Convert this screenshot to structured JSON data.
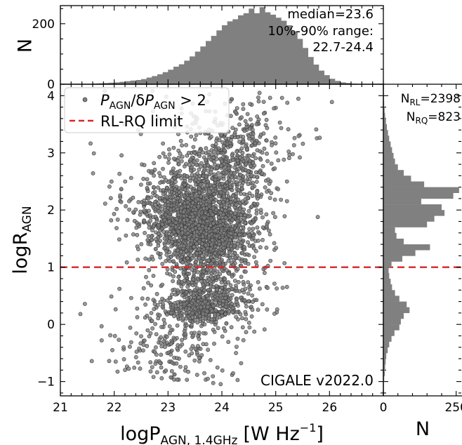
{
  "chart_data": [
    {
      "id": "scatter",
      "type": "scatter",
      "xlabel": "logP",
      "xlabel_sub": "AGN, 1.4GHz",
      "xlabel_unit": "[W Hz",
      "xlabel_exp": "−1",
      "xlabel_close": "]",
      "ylabel": "logR",
      "ylabel_sub": "AGN",
      "xlim": [
        21.0,
        27.0
      ],
      "ylim": [
        -1.25,
        4.2
      ],
      "xticks": [
        "21",
        "22",
        "23",
        "24",
        "25",
        "26"
      ],
      "xtick_values": [
        21,
        22,
        23,
        24,
        25,
        26
      ],
      "yticks": [
        "−1",
        "0",
        "1",
        "2",
        "3",
        "4"
      ],
      "ytick_values": [
        -1,
        0,
        1,
        2,
        3,
        4
      ],
      "legend_placement": "upper-left",
      "legend": {
        "points": {
          "p": "P",
          "p_sub": "AGN",
          "slash": "/δ",
          "p2": "P",
          "p2_sub": "AGN",
          "cond": " > 2"
        },
        "line": "RL-RQ limit"
      },
      "reference_line": {
        "y": 1.0,
        "color": "#d62728",
        "style": "dashed"
      },
      "point_color": "#808080",
      "point_edge": "#3a3a3a",
      "annotation": "CIGALE v2022.0",
      "series": [
        {
          "clusters": [
            {
              "x_mean": 23.45,
              "x_sd": 0.48,
              "y_mean": 1.85,
              "y_sd": 0.42,
              "n": 1150
            },
            {
              "x_mean": 23.9,
              "x_sd": 0.42,
              "y_mean": 1.55,
              "y_sd": 0.35,
              "n": 500
            },
            {
              "x_mean": 24.1,
              "x_sd": 0.45,
              "y_mean": 2.7,
              "y_sd": 0.5,
              "n": 420
            },
            {
              "x_mean": 23.6,
              "x_sd": 0.7,
              "y_mean": 2.2,
              "y_sd": 0.9,
              "n": 330
            },
            {
              "x_mean": 23.7,
              "x_sd": 0.4,
              "y_mean": 0.55,
              "y_sd": 0.22,
              "n": 330
            },
            {
              "x_mean": 23.6,
              "x_sd": 0.45,
              "y_mean": 0.25,
              "y_sd": 0.12,
              "n": 230
            },
            {
              "x_mean": 23.2,
              "x_sd": 0.6,
              "y_mean": -0.3,
              "y_sd": 0.45,
              "n": 250
            },
            {
              "x_mean": 24.5,
              "x_sd": 0.7,
              "y_mean": 3.4,
              "y_sd": 0.45,
              "n": 120
            }
          ]
        }
      ]
    },
    {
      "id": "hist-top",
      "type": "bar",
      "ylabel": "N",
      "ylim": [
        0,
        260
      ],
      "yticks": [
        "0",
        "200"
      ],
      "ytick_values": [
        0,
        200
      ],
      "annotation_lines": [
        "median=23.6",
        "10%-90% range:",
        "22.7-24.4"
      ],
      "bin_width": 0.1,
      "bins_start": 21.5,
      "values": [
        1,
        2,
        3,
        4,
        5,
        6,
        8,
        10,
        12,
        14,
        17,
        22,
        27,
        33,
        40,
        48,
        58,
        66,
        78,
        92,
        108,
        125,
        143,
        160,
        178,
        195,
        208,
        215,
        228,
        235,
        250,
        235,
        255,
        238,
        230,
        220,
        210,
        195,
        175,
        150,
        120,
        90,
        65,
        45,
        30,
        18,
        11,
        6,
        4,
        2,
        1
      ]
    },
    {
      "id": "hist-right",
      "type": "bar",
      "orientation": "horizontal",
      "xlabel": "N",
      "xlim": [
        0,
        270
      ],
      "xticks": [
        "0",
        "250"
      ],
      "xtick_values": [
        0,
        250
      ],
      "annotation_lines": [
        {
          "base": "N",
          "sub": "RL",
          "rest": "=2398"
        },
        {
          "base": "N",
          "sub": "RQ",
          "rest": "=823"
        }
      ],
      "bin_width": 0.1,
      "bins_start": -1.0,
      "values": [
        3,
        5,
        6,
        8,
        10,
        15,
        20,
        28,
        38,
        55,
        60,
        70,
        90,
        80,
        55,
        40,
        30,
        25,
        20,
        18,
        28,
        65,
        110,
        160,
        70,
        45,
        40,
        150,
        175,
        210,
        200,
        130,
        240,
        260,
        140,
        95,
        70,
        50,
        40,
        35,
        30,
        25,
        20,
        16,
        12,
        9,
        6,
        4,
        3,
        2,
        1
      ]
    }
  ]
}
